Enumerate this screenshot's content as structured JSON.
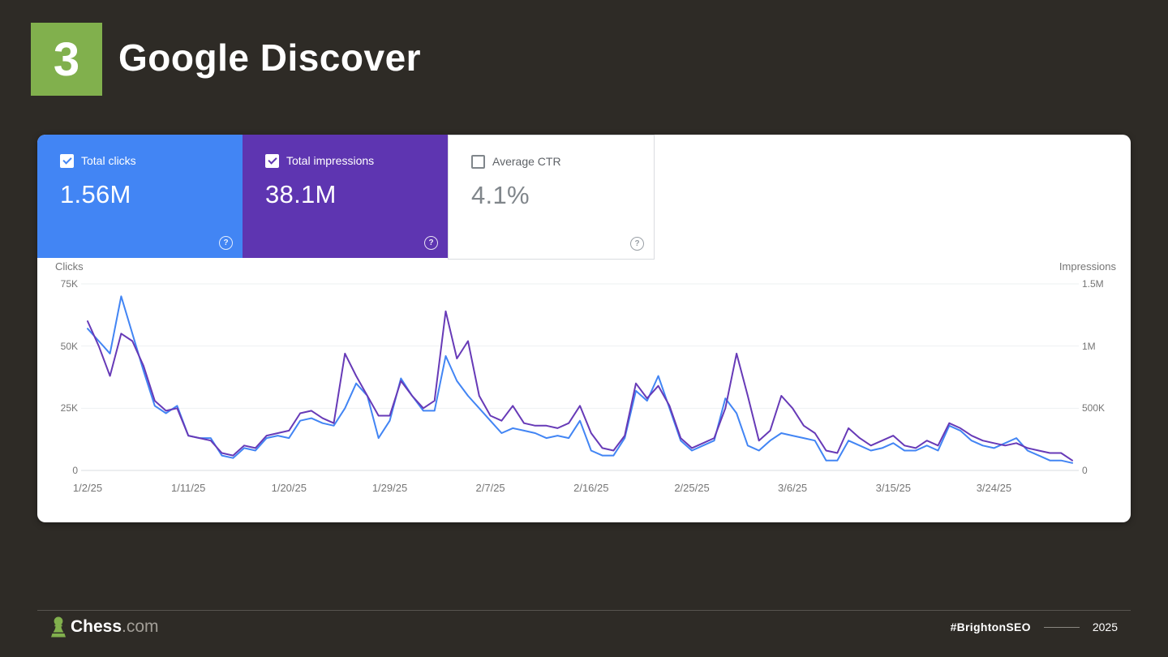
{
  "slide": {
    "number": "3",
    "title": "Google Discover",
    "background_color": "#2e2b26",
    "accent_color": "#81b04d"
  },
  "icons": {
    "help_glyph": "?"
  },
  "metrics": [
    {
      "id": "total-clicks",
      "label": "Total clicks",
      "value": "1.56M",
      "checked": true,
      "bg": "#4285f4",
      "fg": "#ffffff"
    },
    {
      "id": "total-impressions",
      "label": "Total impressions",
      "value": "38.1M",
      "checked": true,
      "bg": "#5e35b1",
      "fg": "#ffffff"
    },
    {
      "id": "average-ctr",
      "label": "Average CTR",
      "value": "4.1%",
      "checked": false,
      "bg": "#ffffff",
      "fg": "#5f6368"
    }
  ],
  "chart_data": {
    "type": "line",
    "x_start": "1/2/25",
    "x_end": "3/31/25",
    "x_frequency": "daily",
    "grid": "horizontal",
    "legend_position": "none",
    "x_tick_labels": [
      "1/2/25",
      "1/11/25",
      "1/20/25",
      "1/29/25",
      "2/7/25",
      "2/16/25",
      "2/25/25",
      "3/6/25",
      "3/15/25",
      "3/24/25"
    ],
    "x_tick_days": [
      0,
      9,
      18,
      27,
      36,
      45,
      54,
      63,
      72,
      81
    ],
    "left_axis": {
      "label": "Clicks",
      "ticks": [
        "75K",
        "50K",
        "25K",
        "0"
      ],
      "max_thousands": 75
    },
    "right_axis": {
      "label": "Impressions",
      "ticks": [
        "1.5M",
        "1M",
        "500K",
        "0"
      ],
      "max_thousands": 1500
    },
    "series": [
      {
        "name": "Clicks",
        "axis": "left",
        "color": "#4285f4",
        "values_thousands": [
          57,
          52,
          47,
          70,
          55,
          40,
          26,
          23,
          26,
          14,
          13,
          13,
          6,
          5,
          9,
          8,
          13,
          14,
          13,
          20,
          21,
          19,
          18,
          25,
          35,
          30,
          13,
          20,
          37,
          30,
          24,
          24,
          46,
          36,
          30,
          25,
          20,
          15,
          17,
          16,
          15,
          13,
          14,
          13,
          20,
          8,
          6,
          6,
          13,
          32,
          28,
          38,
          25,
          12,
          8,
          10,
          12,
          29,
          23,
          10,
          8,
          12,
          15,
          14,
          13,
          12,
          4,
          4,
          12,
          10,
          8,
          9,
          11,
          8,
          8,
          10,
          8,
          18,
          16,
          12,
          10,
          9,
          11,
          13,
          8,
          6,
          4,
          4,
          3
        ]
      },
      {
        "name": "Impressions",
        "axis": "right",
        "color": "#673ab7",
        "values_thousands": [
          1200,
          1000,
          760,
          1100,
          1040,
          840,
          560,
          480,
          500,
          280,
          260,
          240,
          140,
          120,
          200,
          180,
          280,
          300,
          320,
          460,
          480,
          420,
          380,
          940,
          760,
          600,
          440,
          440,
          720,
          600,
          500,
          560,
          1280,
          900,
          1040,
          600,
          440,
          400,
          520,
          380,
          360,
          360,
          340,
          380,
          520,
          300,
          180,
          160,
          280,
          700,
          580,
          680,
          520,
          260,
          180,
          220,
          260,
          500,
          940,
          600,
          240,
          320,
          600,
          500,
          360,
          300,
          160,
          140,
          340,
          260,
          200,
          240,
          280,
          200,
          180,
          240,
          200,
          380,
          340,
          280,
          240,
          220,
          200,
          220,
          180,
          160,
          140,
          140,
          80
        ]
      }
    ]
  },
  "footer": {
    "brand_bold": "Chess",
    "brand_suffix": ".com",
    "hashtag": "#BrightonSEO",
    "year": "2025"
  }
}
